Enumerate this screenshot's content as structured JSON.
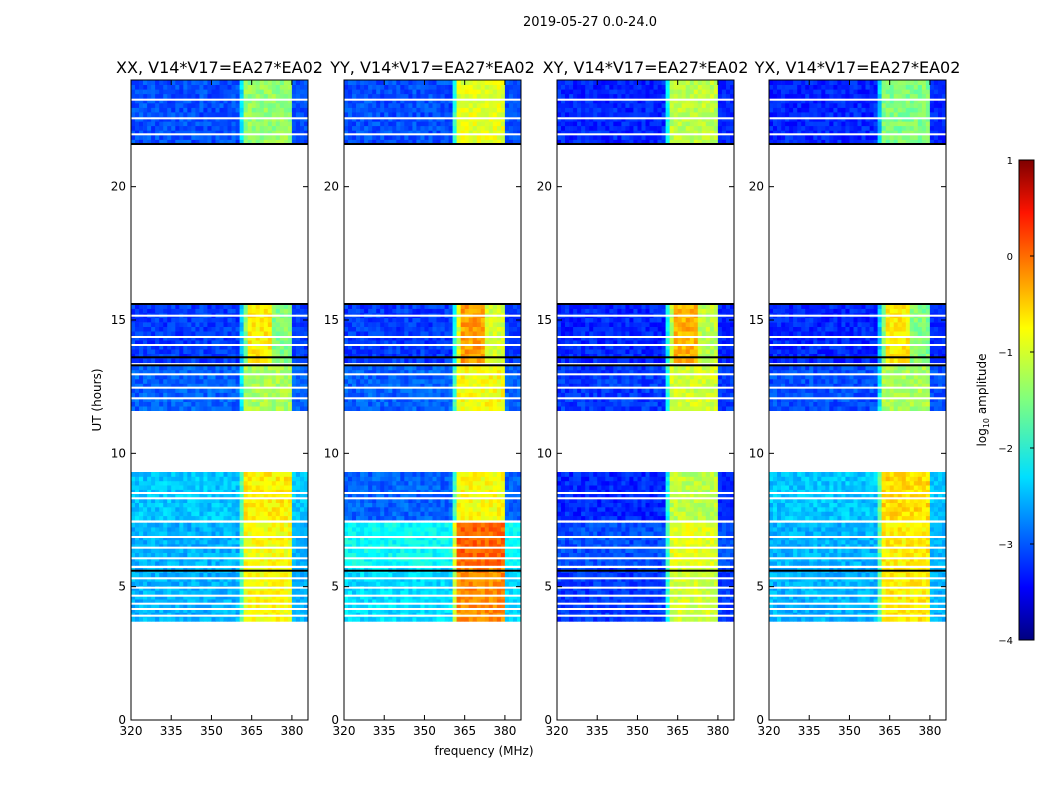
{
  "chart_data": {
    "type": "heatmap",
    "suptitle": "2019-05-27 0.0-24.0",
    "xlabel": "frequency (MHz)",
    "ylabel": "UT (hours)",
    "xlim": [
      320,
      386
    ],
    "ylim": [
      0,
      24
    ],
    "xticks": [
      "320",
      "335",
      "350",
      "365",
      "380"
    ],
    "xtick_values": [
      320,
      335,
      350,
      365,
      380
    ],
    "yticks": [
      "0",
      "5",
      "10",
      "15",
      "20"
    ],
    "ytick_values": [
      0,
      5,
      10,
      15,
      20
    ],
    "data_time_ranges_hours": [
      [
        3.7,
        5.7
      ],
      [
        5.8,
        7.4
      ],
      [
        7.5,
        9.3
      ],
      [
        11.6,
        13.3
      ],
      [
        13.4,
        15.6
      ],
      [
        21.6,
        24.0
      ]
    ],
    "bright_band_mhz": [
      361,
      380
    ],
    "panels": [
      {
        "title": "XX, V14*V17=EA27*EA02",
        "pol": "XX"
      },
      {
        "title": "YY, V14*V17=EA27*EA02",
        "pol": "YY"
      },
      {
        "title": "XY, V14*V17=EA27*EA02",
        "pol": "XY"
      },
      {
        "title": "YX, V14*V17=EA27*EA02",
        "pol": "YX"
      }
    ],
    "colorbar": {
      "label_prefix": "log",
      "label_sub": "10",
      "label_suffix": " amplitude",
      "range": [
        -4,
        1
      ],
      "ticks": [
        "1",
        "0",
        "−1",
        "−2",
        "−3",
        "−4"
      ],
      "tick_values": [
        1,
        0,
        -1,
        -2,
        -3,
        -4
      ],
      "colormap": "jet"
    }
  }
}
